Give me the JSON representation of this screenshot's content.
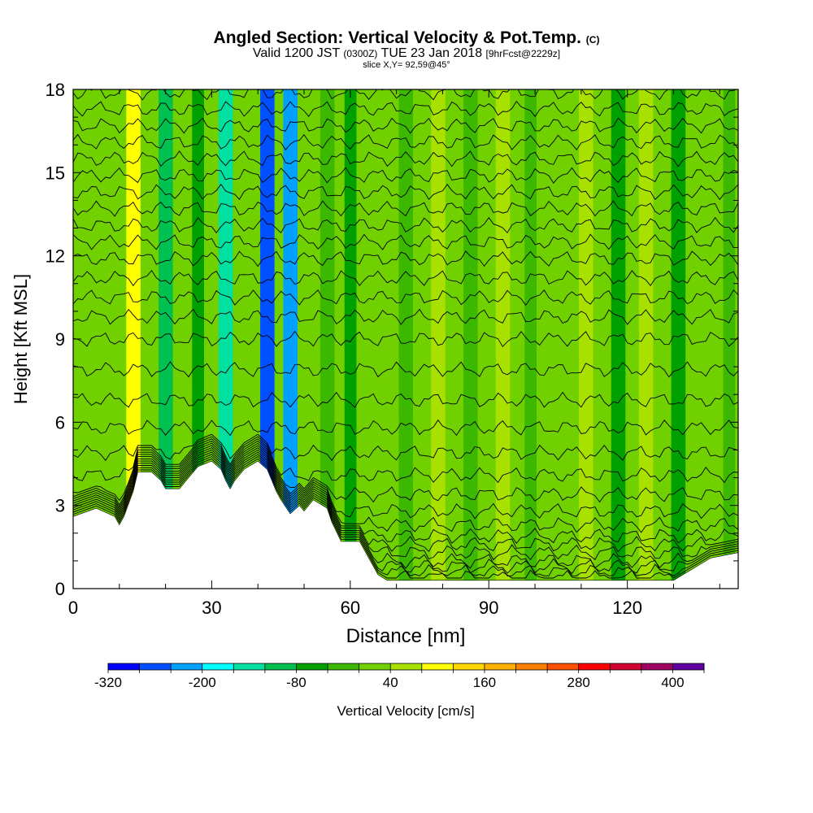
{
  "header": {
    "title": "Angled Section: Vertical Velocity & Pot.Temp.",
    "title_suffix": "(C)",
    "valid_prefix": "Valid 1200 JST",
    "valid_utc": "(0300Z)",
    "valid_date": "TUE 23 Jan 2018",
    "forecast": "[9hrFcst@2229z]",
    "slice": "slice X,Y= 92,59@45°"
  },
  "chart_data": {
    "type": "heatmap",
    "xlabel": "Distance [nm]",
    "ylabel": "Height [Kft MSL]",
    "xlim": [
      0,
      144
    ],
    "ylim": [
      0,
      18
    ],
    "x_ticks": [
      0,
      30,
      60,
      90,
      120
    ],
    "y_ticks": [
      0,
      3,
      6,
      9,
      12,
      15,
      18
    ],
    "colorbar": {
      "label": "Vertical Velocity [cm/s]",
      "min": -320,
      "max": 440,
      "step": 40,
      "tick_labels": [
        -320,
        -200,
        -80,
        40,
        160,
        280,
        400
      ],
      "colors": [
        "#0000ff",
        "#0050ff",
        "#00a0ff",
        "#00ffff",
        "#00e0a0",
        "#00c050",
        "#00a000",
        "#3cb800",
        "#70d000",
        "#a8e000",
        "#ffff00",
        "#ffd700",
        "#ffb000",
        "#ff8000",
        "#ff5000",
        "#ff0000",
        "#d00030",
        "#a00060",
        "#6000a0"
      ]
    },
    "velocity_bands": [
      {
        "x": 4,
        "w": 4,
        "v": 0
      },
      {
        "x": 13,
        "w": 3,
        "v": 80
      },
      {
        "x": 20,
        "w": 3,
        "v": -120
      },
      {
        "x": 27,
        "w": 2.5,
        "v": -80
      },
      {
        "x": 33,
        "w": 3,
        "v": -160
      },
      {
        "x": 37,
        "w": 3,
        "v": 20
      },
      {
        "x": 42,
        "w": 3,
        "v": -280
      },
      {
        "x": 47,
        "w": 3,
        "v": -220
      },
      {
        "x": 55,
        "w": 3,
        "v": -40
      },
      {
        "x": 60,
        "w": 2.5,
        "v": -80
      },
      {
        "x": 65,
        "w": 3,
        "v": 20
      },
      {
        "x": 72,
        "w": 3,
        "v": -40
      },
      {
        "x": 79,
        "w": 3,
        "v": 60
      },
      {
        "x": 86,
        "w": 3,
        "v": -40
      },
      {
        "x": 93,
        "w": 3,
        "v": 40
      },
      {
        "x": 99,
        "w": 2.5,
        "v": -40
      },
      {
        "x": 105,
        "w": 3,
        "v": 20
      },
      {
        "x": 111,
        "w": 3,
        "v": 60
      },
      {
        "x": 118,
        "w": 3,
        "v": -60
      },
      {
        "x": 124,
        "w": 3,
        "v": 60
      },
      {
        "x": 131,
        "w": 3,
        "v": -80
      },
      {
        "x": 137,
        "w": 3,
        "v": 20
      },
      {
        "x": 142,
        "w": 2.5,
        "v": -40
      }
    ],
    "terrain": [
      [
        0,
        2.6
      ],
      [
        5,
        2.9
      ],
      [
        9,
        2.6
      ],
      [
        10,
        2.3
      ],
      [
        11,
        2.6
      ],
      [
        13,
        3.5
      ],
      [
        14,
        4.2
      ],
      [
        17,
        4.2
      ],
      [
        19,
        3.9
      ],
      [
        20,
        3.6
      ],
      [
        23,
        3.6
      ],
      [
        25,
        4.0
      ],
      [
        27,
        4.4
      ],
      [
        30,
        4.6
      ],
      [
        32,
        4.3
      ],
      [
        33,
        3.9
      ],
      [
        34,
        3.6
      ],
      [
        35,
        3.9
      ],
      [
        37,
        4.3
      ],
      [
        40,
        4.6
      ],
      [
        42,
        4.3
      ],
      [
        43,
        3.9
      ],
      [
        44,
        3.5
      ],
      [
        45,
        3.2
      ],
      [
        47,
        2.7
      ],
      [
        49,
        3.0
      ],
      [
        50,
        2.8
      ],
      [
        52,
        3.2
      ],
      [
        55,
        2.9
      ],
      [
        56,
        2.4
      ],
      [
        58,
        1.7
      ],
      [
        62,
        1.7
      ],
      [
        64,
        1.1
      ],
      [
        66,
        0.5
      ],
      [
        68,
        0.3
      ],
      [
        130,
        0.3
      ],
      [
        135,
        0.8
      ],
      [
        138,
        1.1
      ],
      [
        144,
        1.3
      ]
    ],
    "contours": [
      {
        "y": 0.4
      },
      {
        "y": 0.6
      },
      {
        "y": 0.8
      },
      {
        "y": 1.0
      },
      {
        "y": 1.3
      },
      {
        "y": 1.6
      },
      {
        "y": 1.9
      },
      {
        "y": 2.3
      },
      {
        "y": 2.8
      },
      {
        "y": 3.4
      },
      {
        "y": 4.1
      },
      {
        "y": 4.9
      },
      {
        "y": 5.8
      },
      {
        "y": 6.8
      },
      {
        "y": 7.9
      },
      {
        "y": 9.0
      },
      {
        "y": 9.8
      },
      {
        "y": 10.5
      },
      {
        "y": 11.2
      },
      {
        "y": 11.9
      },
      {
        "y": 12.5
      },
      {
        "y": 13.1
      },
      {
        "y": 13.7
      },
      {
        "y": 14.3
      },
      {
        "y": 14.9
      },
      {
        "y": 15.5
      },
      {
        "y": 16.1
      },
      {
        "y": 16.7
      },
      {
        "y": 17.3
      },
      {
        "y": 17.9
      }
    ]
  }
}
